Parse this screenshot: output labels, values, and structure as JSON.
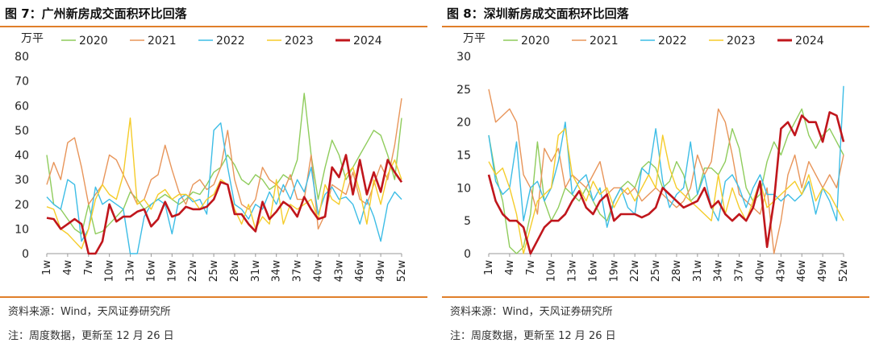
{
  "chart_data": [
    {
      "type": "line",
      "title": "图 7：广州新房成交面积环比回落",
      "ylabel": "万平",
      "xlabel": "",
      "ylim": [
        0,
        80
      ],
      "yticks": [
        0,
        10,
        20,
        30,
        40,
        50,
        60,
        70,
        80
      ],
      "xticks": [
        "1w",
        "4w",
        "7w",
        "10w",
        "13w",
        "16w",
        "19w",
        "22w",
        "25w",
        "28w",
        "31w",
        "34w",
        "37w",
        "40w",
        "43w",
        "46w",
        "49w",
        "52w"
      ],
      "grid": false,
      "legend": "top",
      "x": [
        1,
        2,
        3,
        4,
        5,
        6,
        7,
        8,
        9,
        10,
        11,
        12,
        13,
        14,
        15,
        16,
        17,
        18,
        19,
        20,
        21,
        22,
        23,
        24,
        25,
        26,
        27,
        28,
        29,
        30,
        31,
        32,
        33,
        34,
        35,
        36,
        37,
        38,
        39,
        40,
        41,
        42,
        43,
        44,
        45,
        46,
        47,
        48,
        49,
        50,
        51,
        52
      ],
      "series": [
        {
          "name": "2020",
          "color": "#8fcc5c",
          "values": [
            40,
            20,
            18,
            14,
            10,
            8,
            20,
            8,
            9,
            12,
            15,
            18,
            25,
            22,
            18,
            20,
            22,
            24,
            22,
            20,
            22,
            25,
            24,
            28,
            33,
            35,
            40,
            36,
            30,
            28,
            32,
            30,
            26,
            28,
            32,
            30,
            38,
            65,
            40,
            22,
            35,
            46,
            40,
            30,
            35,
            40,
            45,
            50,
            48,
            40,
            30,
            55
          ]
        },
        {
          "name": "2021",
          "color": "#e8955a",
          "values": [
            28,
            37,
            30,
            45,
            47,
            35,
            20,
            24,
            28,
            40,
            38,
            32,
            26,
            20,
            22,
            30,
            32,
            44,
            34,
            25,
            20,
            28,
            30,
            26,
            28,
            35,
            50,
            30,
            20,
            18,
            22,
            35,
            30,
            28,
            25,
            32,
            22,
            22,
            40,
            10,
            16,
            28,
            26,
            24,
            33,
            22,
            20,
            28,
            36,
            30,
            44,
            63
          ]
        },
        {
          "name": "2022",
          "color": "#3dbde6",
          "values": [
            23,
            20,
            18,
            30,
            28,
            5,
            10,
            27,
            20,
            22,
            20,
            18,
            0,
            0,
            15,
            20,
            22,
            20,
            8,
            22,
            24,
            21,
            22,
            16,
            50,
            53,
            35,
            20,
            18,
            14,
            20,
            18,
            25,
            20,
            28,
            22,
            30,
            25,
            35,
            16,
            24,
            27,
            22,
            23,
            20,
            12,
            22,
            15,
            5,
            20,
            25,
            22
          ]
        },
        {
          "name": "2023",
          "color": "#f5cc2a",
          "values": [
            19,
            18,
            10,
            8,
            5,
            2,
            10,
            22,
            28,
            24,
            22,
            32,
            55,
            20,
            22,
            18,
            24,
            26,
            22,
            24,
            24,
            22,
            18,
            22,
            24,
            30,
            28,
            18,
            12,
            20,
            10,
            15,
            12,
            30,
            12,
            20,
            18,
            20,
            22,
            14,
            28,
            22,
            20,
            32,
            35,
            25,
            12,
            30,
            20,
            32,
            38,
            30
          ]
        },
        {
          "name": "2024",
          "color": "#c0161c",
          "values": [
            14.5,
            14,
            10,
            12,
            14,
            12,
            0,
            0,
            5,
            20,
            13,
            15,
            15,
            17,
            18,
            11,
            14,
            21,
            15,
            16,
            19,
            18,
            18,
            19,
            22,
            29,
            28,
            16,
            16,
            12,
            9,
            21,
            14,
            17,
            21,
            19,
            15,
            23,
            18,
            14,
            15,
            35,
            31,
            40,
            24,
            38,
            24,
            33,
            25,
            38,
            33,
            29
          ]
        }
      ]
    },
    {
      "type": "line",
      "title": "图 8：深圳新房成交面积环比回落",
      "ylabel": "万平",
      "xlabel": "",
      "ylim": [
        0,
        30
      ],
      "yticks": [
        0,
        5,
        10,
        15,
        20,
        25,
        30
      ],
      "xticks": [
        "1w",
        "4w",
        "7w",
        "10w",
        "13w",
        "16w",
        "19w",
        "22w",
        "25w",
        "28w",
        "31w",
        "34w",
        "37w",
        "40w",
        "43w",
        "46w",
        "49w",
        "52w"
      ],
      "grid": false,
      "legend": "top",
      "x": [
        1,
        2,
        3,
        4,
        5,
        6,
        7,
        8,
        9,
        10,
        11,
        12,
        13,
        14,
        15,
        16,
        17,
        18,
        19,
        20,
        21,
        22,
        23,
        24,
        25,
        26,
        27,
        28,
        29,
        30,
        31,
        32,
        33,
        34,
        35,
        36,
        37,
        38,
        39,
        40,
        41,
        42,
        43,
        44,
        45,
        46,
        47,
        48,
        49,
        50,
        51,
        52
      ],
      "series": [
        {
          "name": "2020",
          "color": "#8fcc5c",
          "values": [
            18,
            12,
            8,
            1,
            0,
            1,
            6,
            17,
            8,
            5,
            7,
            10,
            9,
            8,
            10,
            8,
            6,
            5,
            8,
            10,
            11,
            10,
            13,
            14,
            13,
            10,
            11,
            14,
            12,
            8,
            9,
            13,
            13,
            12,
            14,
            19,
            16,
            10,
            8,
            9,
            14,
            17,
            15,
            18,
            20,
            22,
            18,
            16,
            18,
            19,
            17,
            15
          ]
        },
        {
          "name": "2021",
          "color": "#e8955a",
          "values": [
            25,
            20,
            21,
            22,
            20,
            12,
            10,
            6,
            16,
            14,
            16,
            10,
            12,
            11,
            10,
            12,
            14,
            9,
            10,
            10,
            9,
            10,
            8,
            9,
            10,
            9,
            8,
            7,
            8,
            10,
            15,
            12,
            14,
            22,
            20,
            15,
            9,
            8,
            7,
            6,
            10,
            0,
            5,
            12,
            15,
            10,
            14,
            12,
            10,
            12,
            10,
            15
          ]
        },
        {
          "name": "2022",
          "color": "#3dbde6",
          "values": [
            18,
            11,
            9,
            10,
            17,
            5,
            10,
            11,
            8,
            10,
            14,
            20,
            9,
            11,
            12,
            8,
            10,
            4,
            8,
            10,
            7,
            6,
            13,
            12,
            19,
            11,
            7,
            9,
            10,
            17,
            9,
            12,
            7,
            5,
            11,
            12,
            10,
            7,
            10,
            12,
            9,
            9,
            8,
            9,
            8,
            9,
            11,
            6,
            10,
            8,
            5,
            25.5
          ]
        },
        {
          "name": "2023",
          "color": "#f5cc2a",
          "values": [
            14,
            12,
            13,
            10,
            6,
            0,
            4,
            8,
            9,
            10,
            18,
            19,
            12,
            10,
            8,
            11,
            9,
            10,
            7,
            9,
            10,
            8,
            10,
            12,
            10,
            18,
            13,
            10,
            9,
            8,
            7,
            6,
            5,
            12,
            6,
            10,
            7,
            5,
            8,
            11,
            7,
            8,
            9,
            10,
            11,
            9,
            12,
            8,
            10,
            9,
            7,
            5
          ]
        },
        {
          "name": "2024",
          "color": "#c0161c",
          "values": [
            12,
            8,
            6,
            5,
            5,
            4,
            0,
            2,
            4,
            5,
            5,
            6,
            8,
            9.5,
            7,
            6,
            8,
            9,
            5,
            6,
            6,
            6,
            5.5,
            6,
            7,
            10,
            9,
            8,
            7,
            7.5,
            8,
            10,
            7,
            8,
            6,
            5,
            6,
            5,
            7,
            11,
            1,
            8,
            19,
            20,
            18,
            21,
            20,
            20,
            17,
            21.5,
            21,
            17
          ]
        }
      ]
    }
  ],
  "panels": [
    {
      "title": "图 7：广州新房成交面积环比回落",
      "source": "资料来源：Wind，天风证券研究所",
      "note": "注：周度数据，更新至 12 月 26 日"
    },
    {
      "title": "图 8：深圳新房成交面积环比回落",
      "source": "资料来源：Wind，天风证券研究所",
      "note": "注：周度数据，更新至 12 月 26 日"
    }
  ]
}
